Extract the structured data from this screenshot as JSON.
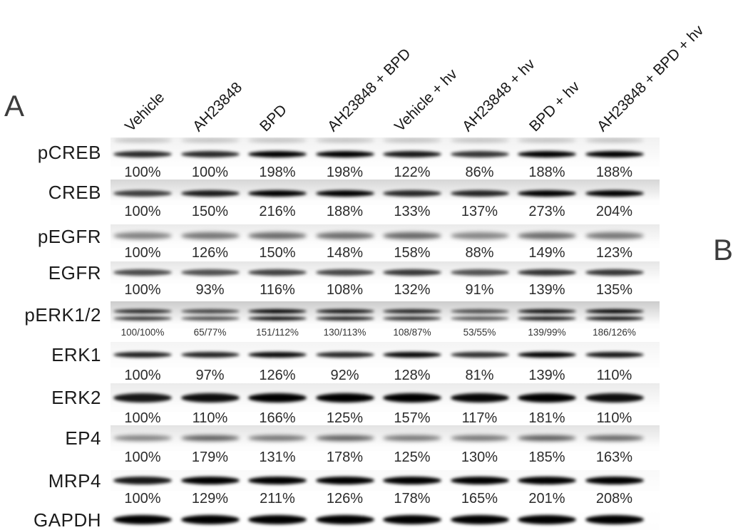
{
  "figure_type": "western blot panel",
  "panel": {
    "a_label": "A",
    "b_label": "B"
  },
  "conditions": [
    "Vehicle",
    "AH23848",
    "BPD",
    "AH23848 + BPD",
    "Vehicle + hv",
    "AH23848 + hv",
    "BPD + hv",
    "AH23848 + BPD + hv"
  ],
  "blot_rows": [
    {
      "protein": "pCREB",
      "values": [
        "100%",
        "100%",
        "198%",
        "198%",
        "122%",
        "86%",
        "188%",
        "188%"
      ]
    },
    {
      "protein": "CREB",
      "values": [
        "100%",
        "150%",
        "216%",
        "188%",
        "133%",
        "137%",
        "273%",
        "204%"
      ]
    },
    {
      "protein": "pEGFR",
      "values": [
        "100%",
        "126%",
        "150%",
        "148%",
        "158%",
        "88%",
        "149%",
        "123%"
      ]
    },
    {
      "protein": "EGFR",
      "values": [
        "100%",
        "93%",
        "116%",
        "108%",
        "132%",
        "91%",
        "139%",
        "135%"
      ]
    },
    {
      "protein": "pERK1/2",
      "values": [
        "100/100%",
        "65/77%",
        "151/112%",
        "130/113%",
        "108/87%",
        "53/55%",
        "139/99%",
        "186/126%"
      ]
    },
    {
      "protein": "ERK1",
      "values": [
        "100%",
        "97%",
        "126%",
        "92%",
        "128%",
        "81%",
        "139%",
        "110%"
      ]
    },
    {
      "protein": "ERK2",
      "values": [
        "100%",
        "110%",
        "166%",
        "125%",
        "157%",
        "117%",
        "181%",
        "110%"
      ]
    },
    {
      "protein": "EP4",
      "values": [
        "100%",
        "179%",
        "131%",
        "178%",
        "125%",
        "130%",
        "185%",
        "163%"
      ]
    },
    {
      "protein": "MRP4",
      "values": [
        "100%",
        "129%",
        "211%",
        "126%",
        "178%",
        "165%",
        "201%",
        "208%"
      ]
    },
    {
      "protein": "GAPDH",
      "values": []
    }
  ]
}
